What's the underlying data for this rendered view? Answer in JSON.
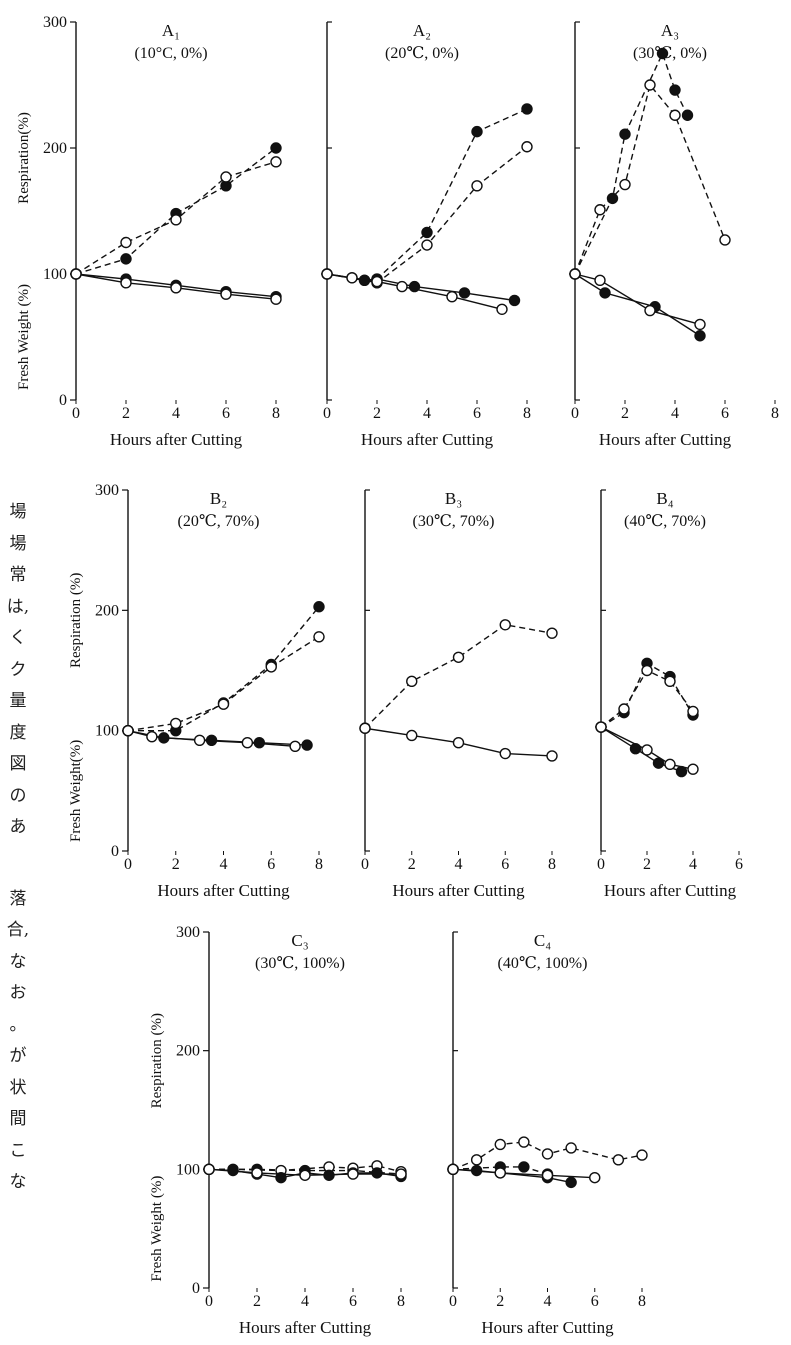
{
  "side_text": [
    "場",
    "場",
    "常",
    "は,",
    "く",
    "ク",
    "量",
    "度",
    "図",
    "の",
    "あ",
    "",
    "落",
    "合,",
    "な",
    "お",
    "。",
    "が",
    "状",
    "間",
    "こ",
    "な"
  ],
  "chart_data": [
    {
      "type": "line",
      "panel": "A1",
      "title": "A₁",
      "subtitle": "(10°C, 0%)",
      "xlabel": "Hours after Cutting",
      "ylabel_top": "Respiration(%)",
      "ylabel_bottom": "Fresh Weight (%)",
      "xlim": [
        0,
        8
      ],
      "ylim": [
        0,
        300
      ],
      "xticks": [
        0,
        2,
        4,
        6,
        8
      ],
      "yticks": [
        0,
        100,
        200,
        300
      ],
      "series": [
        {
          "marker": "filled",
          "style": "dashed",
          "x": [
            0,
            2,
            4,
            6,
            8
          ],
          "y": [
            100,
            112,
            148,
            170,
            200
          ]
        },
        {
          "marker": "open",
          "style": "dashed",
          "x": [
            0,
            2,
            4,
            6,
            8
          ],
          "y": [
            100,
            125,
            143,
            177,
            189
          ]
        },
        {
          "marker": "filled",
          "style": "solid",
          "x": [
            0,
            2,
            4,
            6,
            8
          ],
          "y": [
            100,
            96,
            91,
            86,
            82
          ]
        },
        {
          "marker": "open",
          "style": "solid",
          "x": [
            0,
            2,
            4,
            6,
            8
          ],
          "y": [
            100,
            93,
            89,
            84,
            80
          ]
        }
      ]
    },
    {
      "type": "line",
      "panel": "A2",
      "title": "A₂",
      "subtitle": "(20℃, 0%)",
      "xlabel": "Hours after Cutting",
      "xlim": [
        0,
        8
      ],
      "ylim": [
        0,
        300
      ],
      "xticks": [
        0,
        2,
        4,
        6,
        8
      ],
      "yticks": [
        0,
        100,
        200,
        300
      ],
      "series": [
        {
          "marker": "filled",
          "style": "dashed",
          "x": [
            0,
            1.5,
            2,
            4,
            6,
            8
          ],
          "y": [
            100,
            95,
            96,
            133,
            213,
            231
          ]
        },
        {
          "marker": "open",
          "style": "dashed",
          "x": [
            0,
            1,
            2,
            4,
            6,
            8
          ],
          "y": [
            100,
            97,
            93,
            123,
            170,
            201
          ]
        },
        {
          "marker": "filled",
          "style": "solid",
          "x": [
            0,
            1.5,
            2,
            3.5,
            5.5,
            7.5
          ],
          "y": [
            100,
            95,
            96,
            90,
            85,
            79
          ]
        },
        {
          "marker": "open",
          "style": "solid",
          "x": [
            0,
            1,
            2,
            3,
            5,
            7
          ],
          "y": [
            100,
            97,
            94,
            90,
            82,
            72
          ]
        }
      ]
    },
    {
      "type": "line",
      "panel": "A3",
      "title": "A₃",
      "subtitle": "(30℃, 0%)",
      "xlabel": "Hours after Cutting",
      "xlim": [
        0,
        8
      ],
      "ylim": [
        0,
        300
      ],
      "xticks": [
        0,
        2,
        4,
        6,
        8
      ],
      "yticks": [
        0,
        100,
        200,
        300
      ],
      "series": [
        {
          "marker": "filled",
          "style": "dashed",
          "x": [
            0,
            1.5,
            2,
            3.5,
            4,
            4.5
          ],
          "y": [
            100,
            160,
            211,
            275,
            246,
            226
          ]
        },
        {
          "marker": "open",
          "style": "dashed",
          "x": [
            0,
            1,
            2,
            3,
            4,
            6
          ],
          "y": [
            100,
            151,
            171,
            250,
            226,
            127
          ]
        },
        {
          "marker": "filled",
          "style": "solid",
          "x": [
            0,
            1.2,
            3.2,
            5
          ],
          "y": [
            100,
            85,
            74,
            51
          ]
        },
        {
          "marker": "open",
          "style": "solid",
          "x": [
            0,
            1,
            3,
            5
          ],
          "y": [
            100,
            95,
            71,
            60
          ]
        }
      ]
    },
    {
      "type": "line",
      "panel": "B2",
      "title": "B₂",
      "subtitle": "(20℃, 70%)",
      "xlabel": "Hours after Cutting",
      "ylabel_top": "Respiration (%)",
      "ylabel_bottom": "Fresh Weight(%)",
      "xlim": [
        0,
        8
      ],
      "ylim": [
        0,
        300
      ],
      "xticks": [
        0,
        2,
        4,
        6,
        8
      ],
      "yticks": [
        0,
        100,
        200,
        300
      ],
      "series": [
        {
          "marker": "filled",
          "style": "dashed",
          "x": [
            0,
            2,
            4,
            6,
            8
          ],
          "y": [
            100,
            100,
            123,
            155,
            203
          ]
        },
        {
          "marker": "open",
          "style": "dashed",
          "x": [
            0,
            2,
            4,
            6,
            8
          ],
          "y": [
            100,
            106,
            122,
            153,
            178
          ]
        },
        {
          "marker": "filled",
          "style": "solid",
          "x": [
            0,
            1.5,
            3.5,
            5.5,
            7.5
          ],
          "y": [
            100,
            94,
            92,
            90,
            88
          ]
        },
        {
          "marker": "open",
          "style": "solid",
          "x": [
            0,
            1,
            3,
            5,
            7
          ],
          "y": [
            100,
            95,
            92,
            90,
            87
          ]
        }
      ]
    },
    {
      "type": "line",
      "panel": "B3",
      "title": "B₃",
      "subtitle": "(30℃, 70%)",
      "xlabel": "Hours after Cutting",
      "xlim": [
        0,
        8
      ],
      "ylim": [
        0,
        300
      ],
      "xticks": [
        0,
        2,
        4,
        6,
        8
      ],
      "yticks": [
        0,
        100,
        200,
        300
      ],
      "series": [
        {
          "marker": "open",
          "style": "dashed",
          "x": [
            0,
            2,
            4,
            6,
            8
          ],
          "y": [
            102,
            141,
            161,
            188,
            181
          ]
        },
        {
          "marker": "open",
          "style": "solid",
          "x": [
            0,
            2,
            4,
            6,
            8
          ],
          "y": [
            102,
            96,
            90,
            81,
            79
          ]
        }
      ]
    },
    {
      "type": "line",
      "panel": "B4",
      "title": "B₄",
      "subtitle": "(40℃, 70%)",
      "xlabel": "Hours after Cutting",
      "xlim": [
        0,
        6
      ],
      "ylim": [
        0,
        300
      ],
      "xticks": [
        0,
        2,
        4,
        6
      ],
      "yticks": [
        0,
        100,
        200,
        300
      ],
      "series": [
        {
          "marker": "filled",
          "style": "dashed",
          "x": [
            0,
            1,
            2,
            3,
            4
          ],
          "y": [
            103,
            115,
            156,
            145,
            113
          ]
        },
        {
          "marker": "open",
          "style": "dashed",
          "x": [
            0,
            1,
            2,
            3,
            4
          ],
          "y": [
            103,
            118,
            150,
            141,
            116
          ]
        },
        {
          "marker": "filled",
          "style": "solid",
          "x": [
            0,
            1.5,
            2.5,
            3.5
          ],
          "y": [
            103,
            85,
            73,
            66
          ]
        },
        {
          "marker": "open",
          "style": "solid",
          "x": [
            0,
            2,
            3,
            4
          ],
          "y": [
            103,
            84,
            72,
            68
          ]
        }
      ]
    },
    {
      "type": "line",
      "panel": "C3",
      "title": "C₃",
      "subtitle": "(30℃, 100%)",
      "xlabel": "Hours after Cutting",
      "ylabel_top": "Respiration (%)",
      "ylabel_bottom": "Fresh Weight (%)",
      "xlim": [
        0,
        8
      ],
      "ylim": [
        0,
        300
      ],
      "xticks": [
        0,
        2,
        4,
        6,
        8
      ],
      "yticks": [
        0,
        100,
        200,
        300
      ],
      "series": [
        {
          "marker": "filled",
          "style": "dashed",
          "x": [
            0,
            2,
            4,
            6,
            8
          ],
          "y": [
            100,
            100,
            99,
            99,
            96
          ]
        },
        {
          "marker": "open",
          "style": "dashed",
          "x": [
            0,
            1,
            3,
            5,
            6,
            7,
            8
          ],
          "y": [
            100,
            100,
            99,
            102,
            101,
            103,
            98
          ]
        },
        {
          "marker": "filled",
          "style": "solid",
          "x": [
            0,
            1,
            2,
            3,
            4,
            5,
            6,
            7,
            8
          ],
          "y": [
            100,
            99,
            96,
            93,
            97,
            95,
            97,
            97,
            94
          ]
        },
        {
          "marker": "open",
          "style": "solid",
          "x": [
            0,
            2,
            4,
            6,
            8
          ],
          "y": [
            100,
            97,
            95,
            96,
            96
          ]
        }
      ]
    },
    {
      "type": "line",
      "panel": "C4",
      "title": "C₄",
      "subtitle": "(40℃, 100%)",
      "xlabel": "Hours after Cutting",
      "xlim": [
        0,
        8
      ],
      "ylim": [
        0,
        300
      ],
      "xticks": [
        0,
        2,
        4,
        6,
        8
      ],
      "yticks": [
        0,
        100,
        200,
        300
      ],
      "series": [
        {
          "marker": "open",
          "style": "dashed",
          "x": [
            0,
            1,
            2,
            3,
            4,
            5,
            7,
            8
          ],
          "y": [
            100,
            108,
            121,
            123,
            113,
            118,
            108,
            112
          ]
        },
        {
          "marker": "filled",
          "style": "dashed",
          "x": [
            0,
            2,
            3,
            4
          ],
          "y": [
            100,
            102,
            102,
            96
          ]
        },
        {
          "marker": "filled",
          "style": "solid",
          "x": [
            0,
            1,
            2,
            4,
            5
          ],
          "y": [
            100,
            99,
            97,
            93,
            89
          ]
        },
        {
          "marker": "open",
          "style": "solid",
          "x": [
            0,
            2,
            4,
            6
          ],
          "y": [
            100,
            97,
            95,
            93
          ]
        }
      ]
    }
  ]
}
